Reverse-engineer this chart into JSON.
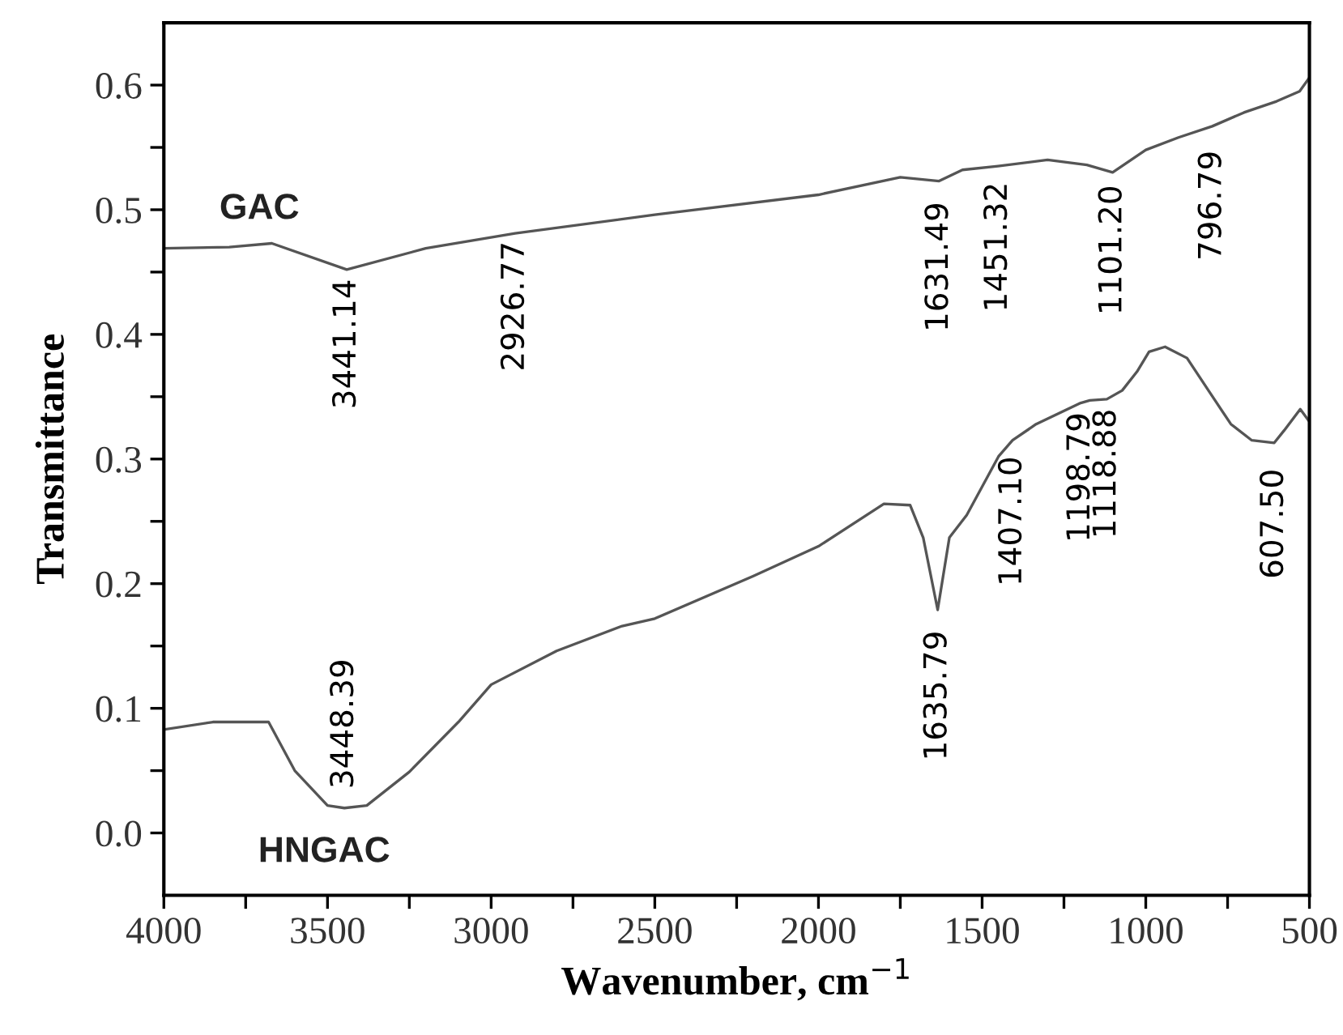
{
  "chart_data": {
    "type": "line",
    "xlabel": "Wavenumber, cm$^{−1}$",
    "ylabel": "Transmittance",
    "xlim": [
      4000,
      500
    ],
    "ylim": [
      -0.05,
      0.65
    ],
    "xticks": [
      4000,
      {
        "value": 3750,
        "label": null
      },
      3500,
      {
        "value": 3250,
        "label": null
      },
      3000,
      {
        "value": 2750,
        "label": null
      },
      2500,
      {
        "value": 2250,
        "label": null
      },
      2000,
      {
        "value": 1750,
        "label": null
      },
      1500,
      {
        "value": 1250,
        "label": null
      },
      1000,
      {
        "value": 750,
        "label": null
      },
      500
    ],
    "yticks": [
      {
        "value": 0,
        "label": "0.0"
      },
      {
        "value": 0.05,
        "label": null
      },
      {
        "value": 0.1,
        "label": "0.1"
      },
      {
        "value": 0.15,
        "label": null
      },
      {
        "value": 0.2,
        "label": "0.2"
      },
      {
        "value": 0.25,
        "label": null
      },
      {
        "value": 0.3,
        "label": "0.3"
      },
      {
        "value": 0.35,
        "label": null
      },
      {
        "value": 0.4,
        "label": "0.4"
      },
      {
        "value": 0.45,
        "label": null
      },
      {
        "value": 0.5,
        "label": "0.5"
      },
      {
        "value": 0.55,
        "label": null
      },
      {
        "value": 0.6,
        "label": "0.6"
      }
    ],
    "grid": false,
    "legend": false,
    "marker": "none",
    "line_style": "solid",
    "series": [
      {
        "name": "GAC",
        "color": "#555555",
        "x": [
          4000,
          3800,
          3670,
          3441.14,
          3200,
          2926.77,
          2500,
          2000,
          1750,
          1631.49,
          1560,
          1451.32,
          1300,
          1180,
          1101.2,
          1000,
          900,
          796.79,
          700,
          600,
          530,
          500
        ],
        "values": [
          0.469,
          0.47,
          0.473,
          0.452,
          0.469,
          0.481,
          0.496,
          0.512,
          0.526,
          0.523,
          0.532,
          0.535,
          0.54,
          0.536,
          0.53,
          0.548,
          0.558,
          0.567,
          0.578,
          0.587,
          0.595,
          0.606
        ]
      },
      {
        "name": "HNGAC",
        "color": "#555555",
        "x": [
          4000,
          3850,
          3680,
          3600,
          3500,
          3448.39,
          3380,
          3250,
          3100,
          3000,
          2800,
          2600,
          2500,
          2200,
          2000,
          1800,
          1720,
          1680,
          1635.79,
          1600,
          1547,
          1450,
          1407.1,
          1335,
          1198.79,
          1171,
          1118.88,
          1072,
          1027,
          990,
          941,
          874,
          806,
          740,
          676,
          607.5,
          577,
          528,
          500
        ],
        "values": [
          0.083,
          0.089,
          0.089,
          0.05,
          0.022,
          0.02,
          0.022,
          0.049,
          0.089,
          0.119,
          0.146,
          0.166,
          0.172,
          0.206,
          0.23,
          0.264,
          0.263,
          0.237,
          0.179,
          0.237,
          0.255,
          0.302,
          0.315,
          0.328,
          0.345,
          0.347,
          0.348,
          0.355,
          0.37,
          0.386,
          0.39,
          0.381,
          0.354,
          0.328,
          0.315,
          0.313,
          0.323,
          0.34,
          0.33
        ]
      }
    ],
    "annotations": [
      {
        "text": "3441.14",
        "x": 3441.14,
        "y": 0.452
      },
      {
        "text": "2926.77",
        "x": 2926.77,
        "y": 0.481
      },
      {
        "text": "1631.49",
        "x": 1631.49,
        "y": 0.523
      },
      {
        "text": "1451.32",
        "x": 1451.32,
        "y": 0.535
      },
      {
        "text": "1101.20",
        "x": 1101.2,
        "y": 0.53
      },
      {
        "text": "796.79",
        "x": 796.79,
        "y": 0.567
      },
      {
        "text": "3448.39",
        "x": 3448.39,
        "y": 0.02
      },
      {
        "text": "1635.79",
        "x": 1635.79,
        "y": 0.179
      },
      {
        "text": "1407.10",
        "x": 1407.1,
        "y": 0.315
      },
      {
        "text": "1198.79",
        "x": 1198.79,
        "y": 0.345
      },
      {
        "text": "1118.88",
        "x": 1118.88,
        "y": 0.348
      },
      {
        "text": "607.50",
        "x": 607.5,
        "y": 0.313
      }
    ]
  }
}
